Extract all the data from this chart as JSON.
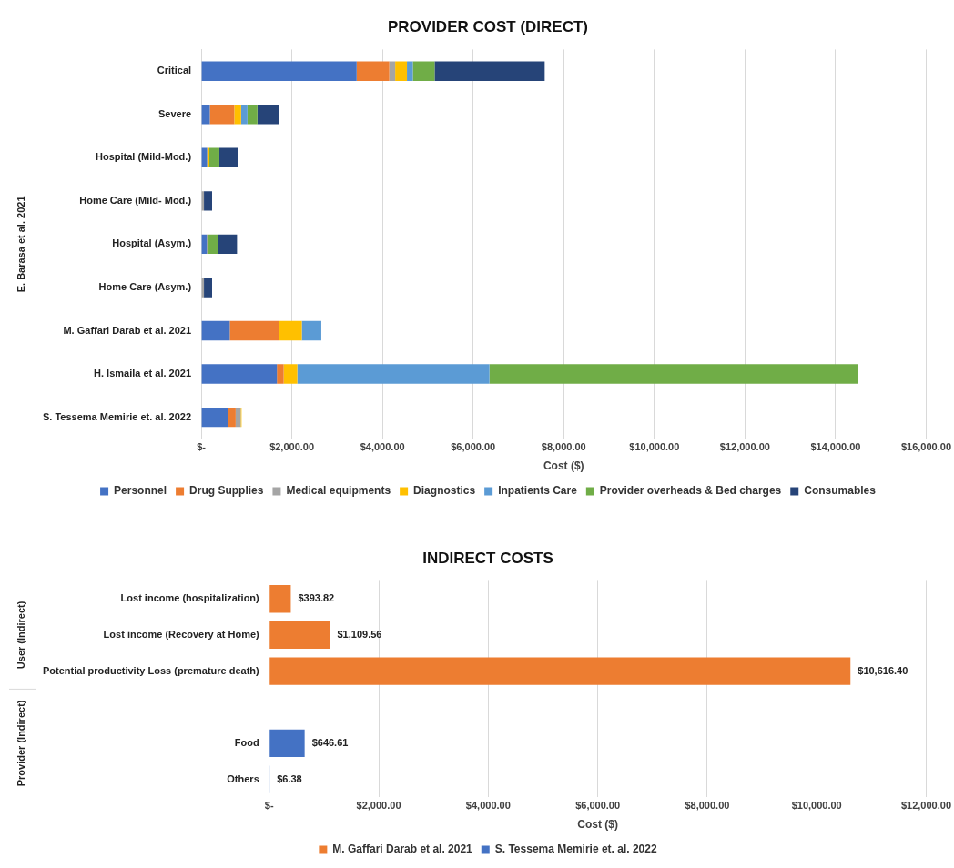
{
  "chart_data": [
    {
      "type": "bar",
      "orientation": "horizontal",
      "stacked": true,
      "title": "PROVIDER COST (DIRECT)",
      "xlabel": "Cost ($)",
      "categories": [
        "Critical",
        "Severe",
        "Hospital (Mild-Mod.)",
        "Home Care (Mild- Mod.)",
        "Hospital (Asym.)",
        "Home Care (Asym.)",
        "M. Gaffari Darab et al. 2021",
        "H. Ismaila et al. 2021",
        "S. Tessema Memirie et. al. 2022"
      ],
      "series": [
        {
          "name": "Personnel",
          "color": "#4472c4",
          "values": [
            3430,
            190,
            130,
            null,
            130,
            null,
            630,
            1670,
            590
          ]
        },
        {
          "name": "Drug Supplies",
          "color": "#ed7d31",
          "values": [
            720,
            540,
            null,
            null,
            null,
            null,
            1090,
            150,
            170
          ]
        },
        {
          "name": "Medical equipments",
          "color": "#a5a5a5",
          "values": [
            130,
            null,
            null,
            60,
            null,
            60,
            null,
            null,
            110
          ]
        },
        {
          "name": "Diagnostics",
          "color": "#ffc000",
          "values": [
            260,
            150,
            50,
            null,
            30,
            null,
            500,
            300,
            20
          ]
        },
        {
          "name": "Inpatients Care",
          "color": "#5b9bd5",
          "values": [
            130,
            140,
            null,
            null,
            null,
            null,
            430,
            4240,
            null
          ]
        },
        {
          "name": "Provider overheads & Bed charges",
          "color": "#70ad47",
          "values": [
            480,
            220,
            220,
            null,
            220,
            null,
            null,
            8130,
            null
          ]
        },
        {
          "name": "Consumables",
          "color": "#264478",
          "values": [
            2430,
            470,
            410,
            180,
            410,
            180,
            null,
            null,
            null
          ]
        }
      ],
      "xlim": [
        0,
        16000
      ],
      "xticks": [
        {
          "value": 0,
          "label": "$-"
        },
        {
          "value": 2000,
          "label": "$2,000.00"
        },
        {
          "value": 4000,
          "label": "$4,000.00"
        },
        {
          "value": 6000,
          "label": "$6,000.00"
        },
        {
          "value": 8000,
          "label": "$8,000.00"
        },
        {
          "value": 10000,
          "label": "$10,000.00"
        },
        {
          "value": 12000,
          "label": "$12,000.00"
        },
        {
          "value": 14000,
          "label": "$14,000.00"
        },
        {
          "value": 16000,
          "label": "$16,000.00"
        }
      ],
      "annotations": [
        "E. Barasa et al. 2021"
      ],
      "grid": "x",
      "legend": "bottom"
    },
    {
      "type": "bar",
      "orientation": "horizontal",
      "title": "INDIRECT COSTS",
      "xlabel": "Cost ($)",
      "categories": [
        "Lost income (hospitalization)",
        "Lost income (Recovery at Home)",
        "Potential productivity Loss (premature death)",
        null,
        "Food",
        "Others"
      ],
      "series": [
        {
          "name": "M. Gaffari Darab et al. 2021",
          "color": "#ed7d31",
          "values": [
            393.82,
            1109.56,
            10616.4,
            null,
            null,
            null
          ],
          "value_labels": [
            "$393.82",
            "$1,109.56",
            "$10,616.40",
            null,
            null,
            null
          ]
        },
        {
          "name": "S. Tessema Memirie et. al. 2022",
          "color": "#4472c4",
          "values": [
            null,
            null,
            null,
            null,
            646.61,
            6.38
          ],
          "value_labels": [
            null,
            null,
            null,
            null,
            "$646.61",
            "$6.38"
          ]
        }
      ],
      "xlim": [
        0,
        12000
      ],
      "xticks": [
        {
          "value": 0,
          "label": "$-"
        },
        {
          "value": 2000,
          "label": "$2,000.00"
        },
        {
          "value": 4000,
          "label": "$4,000.00"
        },
        {
          "value": 6000,
          "label": "$6,000.00"
        },
        {
          "value": 8000,
          "label": "$8,000.00"
        },
        {
          "value": 10000,
          "label": "$10,000.00"
        },
        {
          "value": 12000,
          "label": "$12,000.00"
        }
      ],
      "annotations": [
        "User (Indirect)",
        "Provider (Indirect)"
      ],
      "grid": "x",
      "legend": "bottom"
    }
  ]
}
